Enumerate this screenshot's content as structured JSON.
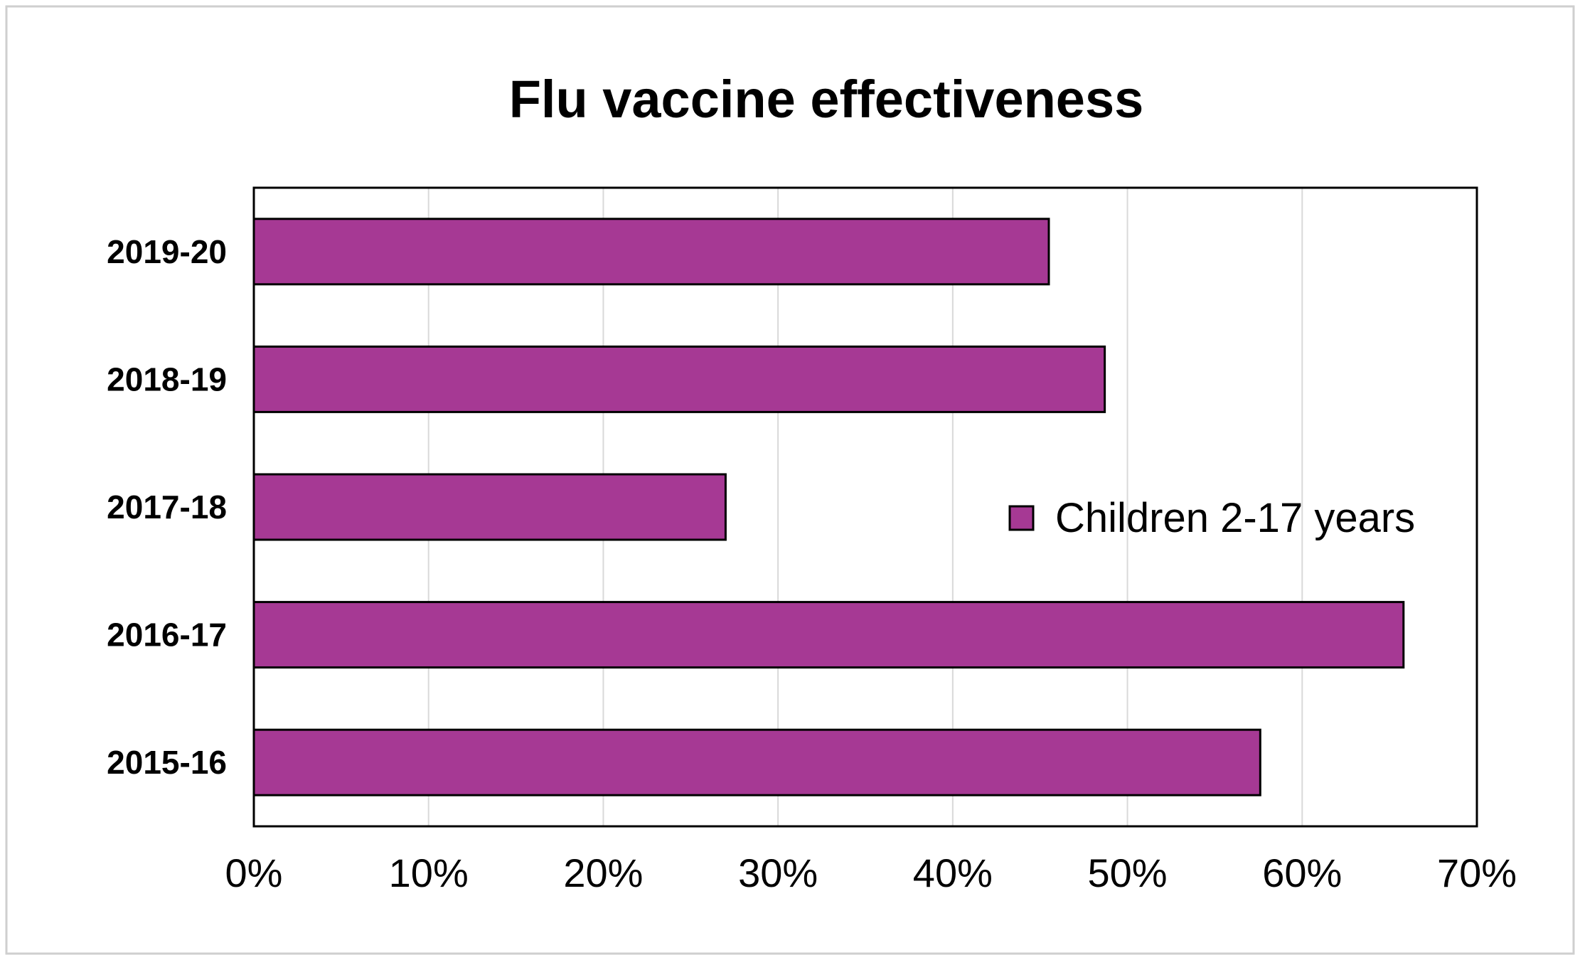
{
  "chart_data": {
    "type": "bar",
    "orientation": "horizontal",
    "title": "Flu vaccine effectiveness",
    "categories": [
      "2019-20",
      "2018-19",
      "2017-18",
      "2016-17",
      "2015-16"
    ],
    "series": [
      {
        "name": "Children 2-17 years",
        "values": [
          45.5,
          48.7,
          27.0,
          65.8,
          57.6
        ],
        "color": "#a63994"
      }
    ],
    "xlim": [
      0,
      70
    ],
    "xticks": [
      0,
      10,
      20,
      30,
      40,
      50,
      60,
      70
    ],
    "xtick_labels": [
      "0%",
      "10%",
      "20%",
      "30%",
      "40%",
      "50%",
      "60%",
      "70%"
    ],
    "grid": "vertical",
    "legend_position": "right",
    "xlabel": "",
    "ylabel": ""
  }
}
